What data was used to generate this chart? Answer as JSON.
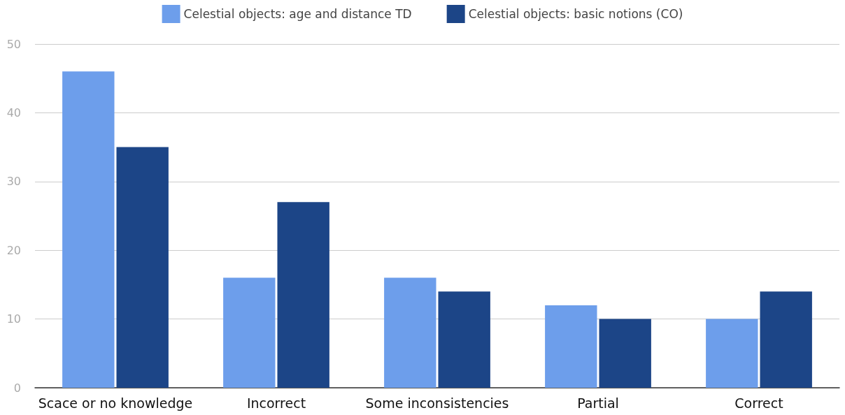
{
  "chart_data": {
    "type": "bar",
    "categories": [
      "Scace or no knowledge",
      "Incorrect",
      "Some inconsistencies",
      "Partial",
      "Correct"
    ],
    "series": [
      {
        "name": "Celestial objects: age and distance TD",
        "color": "#6d9eeb",
        "values": [
          46,
          16,
          16,
          12,
          10
        ]
      },
      {
        "name": "Celestial objects: basic notions (CO)",
        "color": "#1c4587",
        "values": [
          35,
          27,
          14,
          10,
          14
        ]
      }
    ],
    "ylim": [
      0,
      50
    ],
    "yticks": [
      0,
      10,
      20,
      30,
      40,
      50
    ],
    "grid": "y",
    "legend": "top"
  }
}
